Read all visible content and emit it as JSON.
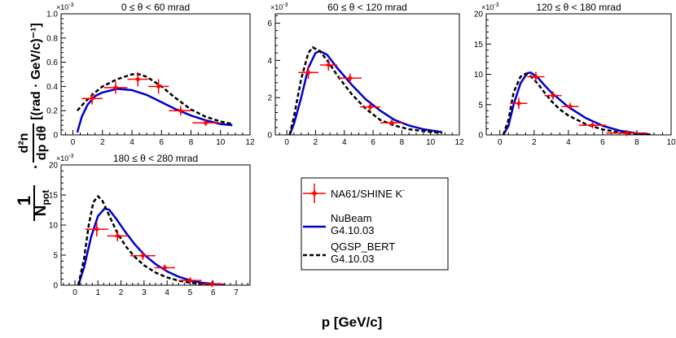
{
  "figure": {
    "ylabel_parts": {
      "one": "1",
      "npot": "N",
      "npot_sub": "pot",
      "dot": "·",
      "num": "d²n",
      "den": "dp dθ",
      "units": "[(rad · GeV/c)⁻¹]"
    },
    "xlabel": "p [GeV/c]",
    "legend": {
      "entries": [
        {
          "label": "NA61/SHINE K",
          "sup": "-",
          "style": "data",
          "color": "#ff0000"
        },
        {
          "label": "NuBeam",
          "label2": "G4.10.03",
          "style": "solid",
          "color": "#0000cc"
        },
        {
          "label": "QGSP_BERT",
          "label2": "G4.10.03",
          "style": "dashed",
          "color": "#000000"
        }
      ]
    },
    "colors": {
      "data": "#ff0000",
      "nubeam": "#0000cc",
      "qgsp": "#000000",
      "axis": "#000000"
    }
  },
  "chart_data": [
    {
      "type": "line",
      "title": "0 ≤ θ < 60 mrad",
      "exponent": "×10",
      "exponent_sup": "-3",
      "xlim": [
        -0.8,
        12
      ],
      "ylim": [
        0,
        1.0
      ],
      "xticks": [
        "0",
        "2",
        "4",
        "6",
        "8",
        "10",
        "12"
      ],
      "yticks": [
        "0",
        "0.2",
        "0.4",
        "0.6",
        "0.8",
        "1.0"
      ],
      "ytick_values": [
        0,
        0.2,
        0.4,
        0.6,
        0.8,
        1.0
      ],
      "xtick_values": [
        0,
        2,
        4,
        6,
        8,
        10,
        12
      ],
      "series": [
        {
          "name": "NA61/SHINE K",
          "kind": "points",
          "x": [
            1.3,
            2.9,
            4.4,
            5.8,
            7.3,
            9.0
          ],
          "y": [
            0.3,
            0.39,
            0.46,
            0.4,
            0.2,
            0.1
          ],
          "xerr": [
            0.7,
            0.8,
            0.7,
            0.7,
            0.8,
            0.9
          ],
          "yerr": [
            0.05,
            0.05,
            0.06,
            0.06,
            0.04,
            0.02
          ]
        },
        {
          "name": "NuBeam",
          "kind": "solid",
          "x": [
            0.3,
            0.6,
            1.0,
            1.5,
            2.0,
            3.0,
            4.0,
            5.0,
            6.0,
            7.0,
            8.0,
            9.0,
            10.0,
            10.8
          ],
          "y": [
            0.02,
            0.15,
            0.25,
            0.32,
            0.35,
            0.38,
            0.37,
            0.33,
            0.27,
            0.21,
            0.16,
            0.12,
            0.09,
            0.08
          ]
        },
        {
          "name": "QGSP_BERT",
          "kind": "dashed",
          "x": [
            0.3,
            0.8,
            1.5,
            2.0,
            3.0,
            4.0,
            4.5,
            5.0,
            6.0,
            7.0,
            8.0,
            9.0,
            10.0,
            10.8
          ],
          "y": [
            0.2,
            0.27,
            0.35,
            0.4,
            0.46,
            0.5,
            0.5,
            0.48,
            0.4,
            0.3,
            0.21,
            0.15,
            0.11,
            0.09
          ]
        }
      ]
    },
    {
      "type": "line",
      "title": "60 ≤ θ < 120 mrad",
      "exponent": "×10",
      "exponent_sup": "-3",
      "xlim": [
        -0.8,
        12
      ],
      "ylim": [
        0,
        6.5
      ],
      "xticks": [
        "0",
        "2",
        "4",
        "6",
        "8",
        "10",
        "12"
      ],
      "yticks": [
        "0",
        "2",
        "4",
        "6"
      ],
      "ytick_values": [
        0,
        2,
        4,
        6
      ],
      "xtick_values": [
        0,
        2,
        4,
        6,
        8,
        10,
        12
      ],
      "series": [
        {
          "name": "NA61/SHINE K",
          "kind": "points",
          "x": [
            1.5,
            2.9,
            4.4,
            5.8,
            7.3
          ],
          "y": [
            3.35,
            3.75,
            3.05,
            1.5,
            0.65
          ],
          "xerr": [
            0.7,
            0.6,
            0.8,
            0.7,
            0.8
          ],
          "yerr": [
            0.35,
            0.3,
            0.25,
            0.2,
            0.12
          ]
        },
        {
          "name": "NuBeam",
          "kind": "solid",
          "x": [
            0.2,
            0.5,
            1.0,
            1.5,
            2.0,
            2.3,
            2.8,
            3.5,
            4.5,
            5.5,
            6.5,
            7.5,
            8.5,
            9.5,
            10.8
          ],
          "y": [
            0.0,
            0.6,
            2.0,
            3.6,
            4.4,
            4.5,
            4.3,
            3.6,
            2.7,
            1.9,
            1.3,
            0.8,
            0.5,
            0.3,
            0.15
          ]
        },
        {
          "name": "QGSP_BERT",
          "kind": "dashed",
          "x": [
            0.2,
            0.5,
            1.0,
            1.5,
            1.8,
            2.3,
            3.0,
            3.5,
            4.5,
            5.5,
            6.5,
            7.5,
            8.5,
            9.5,
            10.8
          ],
          "y": [
            0.0,
            1.0,
            3.0,
            4.4,
            4.7,
            4.5,
            3.8,
            3.2,
            2.2,
            1.4,
            0.8,
            0.5,
            0.3,
            0.2,
            0.1
          ]
        }
      ]
    },
    {
      "type": "line",
      "title": "120 ≤ θ < 180 mrad",
      "exponent": "×10",
      "exponent_sup": "-3",
      "xlim": [
        -0.8,
        10
      ],
      "ylim": [
        0,
        20
      ],
      "xticks": [
        "0",
        "2",
        "4",
        "6",
        "8",
        "10"
      ],
      "yticks": [
        "0",
        "5",
        "10",
        "15",
        "20"
      ],
      "ytick_values": [
        0,
        5,
        10,
        15,
        20
      ],
      "xtick_values": [
        0,
        2,
        4,
        6,
        8,
        10
      ],
      "series": [
        {
          "name": "NA61/SHINE K",
          "kind": "points",
          "x": [
            1.1,
            2.1,
            3.1,
            4.1,
            5.4,
            7.4
          ],
          "y": [
            5.2,
            9.6,
            6.5,
            4.7,
            1.6,
            0.3
          ],
          "xerr": [
            0.5,
            0.5,
            0.5,
            0.5,
            0.8,
            1.2
          ],
          "yerr": [
            0.9,
            0.8,
            0.7,
            0.6,
            0.3,
            0.1
          ]
        },
        {
          "name": "NuBeam",
          "kind": "solid",
          "x": [
            0.2,
            0.5,
            0.8,
            1.2,
            1.6,
            1.8,
            2.2,
            2.6,
            3.0,
            3.5,
            4.0,
            5.0,
            6.0,
            7.0,
            8.0,
            8.8
          ],
          "y": [
            0.0,
            1.5,
            5.0,
            8.5,
            10.2,
            10.3,
            9.5,
            8.2,
            7.0,
            5.8,
            4.6,
            2.8,
            1.5,
            0.7,
            0.25,
            0.05
          ]
        },
        {
          "name": "QGSP_BERT",
          "kind": "dashed",
          "x": [
            0.2,
            0.5,
            0.8,
            1.2,
            1.5,
            1.8,
            2.2,
            2.6,
            3.0,
            3.5,
            4.0,
            5.0,
            6.0,
            7.0,
            8.0,
            8.8
          ],
          "y": [
            0.0,
            2.5,
            7.0,
            9.6,
            10.1,
            9.7,
            8.5,
            7.0,
            5.6,
            4.2,
            3.2,
            1.8,
            0.9,
            0.4,
            0.15,
            0.05
          ]
        }
      ]
    },
    {
      "type": "line",
      "title": "180 ≤ θ < 280 mrad",
      "exponent": "×10",
      "exponent_sup": "-3",
      "xlim": [
        -0.6,
        7.6
      ],
      "ylim": [
        0,
        20
      ],
      "xticks": [
        "0",
        "1",
        "2",
        "3",
        "4",
        "5",
        "6",
        "7"
      ],
      "yticks": [
        "0",
        "5",
        "10",
        "15",
        "20"
      ],
      "ytick_values": [
        0,
        5,
        10,
        15,
        20
      ],
      "xtick_values": [
        0,
        1,
        2,
        3,
        4,
        5,
        6,
        7
      ],
      "series": [
        {
          "name": "NA61/SHINE K",
          "kind": "points",
          "x": [
            0.95,
            1.85,
            2.95,
            3.9,
            5.0,
            5.95
          ],
          "y": [
            9.3,
            8.2,
            4.9,
            2.9,
            0.8,
            0.2
          ],
          "xerr": [
            0.5,
            0.45,
            0.55,
            0.45,
            0.5,
            0.5
          ],
          "yerr": [
            1.2,
            0.9,
            0.7,
            0.5,
            0.2,
            0.1
          ]
        },
        {
          "name": "NuBeam",
          "kind": "solid",
          "x": [
            0.15,
            0.4,
            0.7,
            1.0,
            1.3,
            1.5,
            1.8,
            2.2,
            2.6,
            3.0,
            3.5,
            4.0,
            4.5,
            5.0,
            5.5,
            6.0,
            6.5
          ],
          "y": [
            0.0,
            3.0,
            8.0,
            11.5,
            12.8,
            12.5,
            11.0,
            8.8,
            6.8,
            5.1,
            3.5,
            2.3,
            1.4,
            0.8,
            0.4,
            0.2,
            0.05
          ]
        },
        {
          "name": "QGSP_BERT",
          "kind": "dashed",
          "x": [
            0.15,
            0.4,
            0.6,
            0.8,
            1.0,
            1.2,
            1.5,
            1.8,
            2.2,
            2.6,
            3.0,
            3.5,
            4.0,
            4.5,
            5.0,
            5.5,
            6.0
          ],
          "y": [
            0.0,
            4.5,
            10.0,
            13.8,
            14.8,
            14.0,
            11.5,
            9.0,
            6.5,
            4.7,
            3.3,
            2.1,
            1.3,
            0.75,
            0.4,
            0.2,
            0.08
          ]
        }
      ]
    }
  ]
}
